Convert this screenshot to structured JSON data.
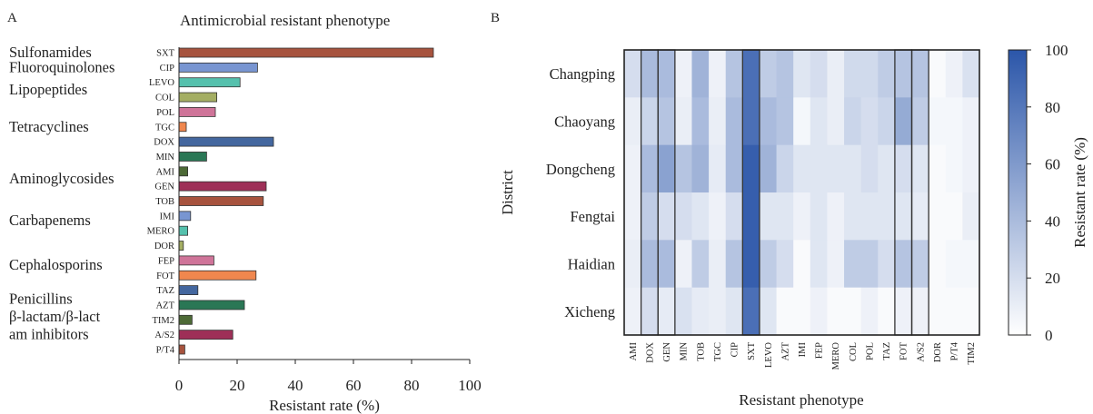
{
  "panel_a_label": "A",
  "panel_b_label": "B",
  "colors": {
    "heat_low": "#ffffff",
    "heat_high": "#2b56a9",
    "bar_series": [
      "#a7533e",
      "#7895d1",
      "#55c1ad",
      "#a4ae63",
      "#cf7499",
      "#f0874e",
      "#44679f",
      "#2a7755",
      "#4d6a36",
      "#9e2f57",
      "#a7533e",
      "#7895d1",
      "#55c1ad",
      "#a4ae63",
      "#cf7499",
      "#f0874e",
      "#44679f",
      "#2a7755",
      "#4d6a36",
      "#9e2f57",
      "#a7533e"
    ]
  },
  "chart_data": [
    {
      "type": "bar",
      "orientation": "horizontal",
      "title": "Antimicrobial resistant phenotype",
      "xlabel": "Resistant rate (%)",
      "ylabel": "",
      "xlim": [
        0,
        100
      ],
      "x_ticks": [
        0,
        20,
        40,
        60,
        80,
        100
      ],
      "categories": [
        "SXT",
        "CIP",
        "LEVO",
        "COL",
        "POL",
        "TGC",
        "DOX",
        "MIN",
        "AMI",
        "GEN",
        "TOB",
        "IMI",
        "MERO",
        "DOR",
        "FEP",
        "FOT",
        "TAZ",
        "AZT",
        "TIM2",
        "A/S2",
        "P/T4"
      ],
      "values": [
        87.5,
        27,
        21,
        13,
        12.5,
        2.5,
        32.5,
        9.5,
        3,
        30,
        29,
        4,
        3,
        1.5,
        12,
        26.5,
        6.5,
        22.5,
        4.5,
        18.5,
        2
      ],
      "class_labels": [
        {
          "text": "Sulfonamides",
          "at": 0
        },
        {
          "text": "Fluoroquinolones",
          "at": 1
        },
        {
          "text": "Lipopeptides",
          "at": 2.5
        },
        {
          "text": "Tetracyclines",
          "at": 5
        },
        {
          "text": "Aminoglycosides",
          "at": 8.5
        },
        {
          "text": "Carbapenems",
          "at": 11.3
        },
        {
          "text": "Cephalosporins",
          "at": 14.3
        },
        {
          "text": "Penicillins",
          "at": 16.6
        },
        {
          "text": "β-lactam/β-lact",
          "at": 17.8
        },
        {
          "text": "am inhibitors",
          "at": 19
        }
      ],
      "grid": false,
      "legend": "none"
    },
    {
      "type": "heatmap",
      "title": "",
      "xlabel": "Resistant phenotype",
      "ylabel": "District",
      "x_categories": [
        "AMI",
        "DOX",
        "GEN",
        "MIN",
        "TOB",
        "TGC",
        "CIP",
        "SXT",
        "LEVO",
        "AZT",
        "IMI",
        "FEP",
        "MERO",
        "COL",
        "POL",
        "TAZ",
        "FOT",
        "A/S2",
        "DOR",
        "P/T4",
        "TIM2"
      ],
      "y_categories": [
        "Changping",
        "Chaoyang",
        "Dongcheng",
        "Fengtai",
        "Haidian",
        "Xicheng"
      ],
      "values": [
        [
          20,
          40,
          40,
          8,
          45,
          8,
          35,
          85,
          30,
          35,
          15,
          20,
          10,
          22,
          22,
          30,
          35,
          35,
          3,
          8,
          18
        ],
        [
          10,
          25,
          35,
          10,
          40,
          10,
          40,
          85,
          40,
          35,
          5,
          15,
          10,
          25,
          20,
          25,
          50,
          30,
          5,
          5,
          8
        ],
        [
          8,
          40,
          55,
          35,
          45,
          12,
          40,
          95,
          45,
          25,
          15,
          15,
          15,
          15,
          20,
          15,
          20,
          15,
          3,
          5,
          8
        ],
        [
          8,
          30,
          20,
          20,
          15,
          8,
          20,
          95,
          15,
          15,
          8,
          15,
          8,
          15,
          15,
          15,
          15,
          12,
          3,
          3,
          10
        ],
        [
          10,
          40,
          40,
          8,
          30,
          10,
          35,
          95,
          30,
          20,
          3,
          15,
          8,
          30,
          30,
          20,
          35,
          30,
          3,
          5,
          5
        ],
        [
          8,
          20,
          12,
          18,
          12,
          10,
          15,
          85,
          15,
          3,
          3,
          8,
          3,
          3,
          8,
          3,
          8,
          8,
          3,
          3,
          3
        ]
      ],
      "colorbar": {
        "label": "Resistant rate (%)",
        "range": [
          0,
          100
        ],
        "ticks": [
          0,
          20,
          40,
          60,
          80,
          100
        ]
      },
      "highlighted_columns": [
        "DOX",
        "GEN",
        "SXT",
        "FOT",
        "A/S2"
      ],
      "grid": false
    }
  ]
}
